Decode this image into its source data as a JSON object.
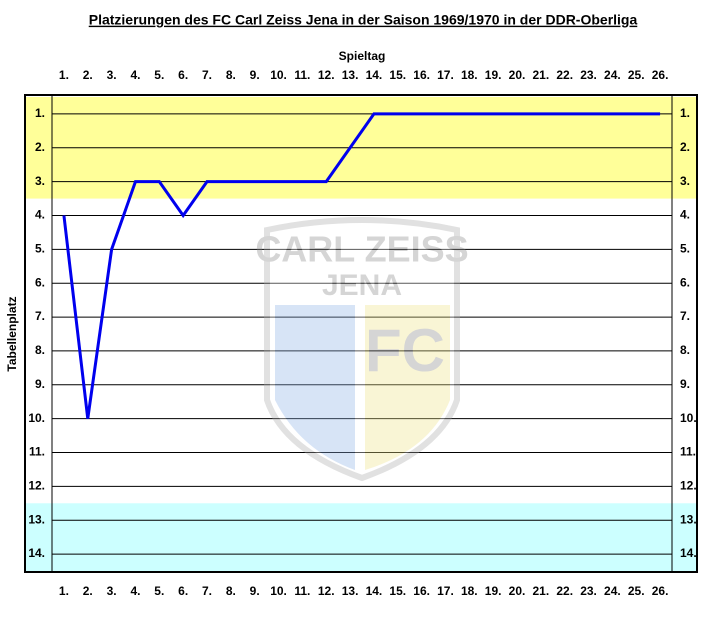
{
  "chart_data": {
    "type": "line",
    "title": "Platzierungen des FC Carl Zeiss Jena in der Saison 1969/1970 in der DDR-Oberliga",
    "x_label": "Spieltag",
    "y_label": "Tabellenplatz",
    "watermark": [
      "CARL ZEISS",
      "JENA",
      "FC"
    ],
    "categories": [
      "1.",
      "2.",
      "3.",
      "4.",
      "5.",
      "6.",
      "7.",
      "8.",
      "9.",
      "10.",
      "11.",
      "12.",
      "13.",
      "14.",
      "15.",
      "16.",
      "17.",
      "18.",
      "19.",
      "20.",
      "21.",
      "22.",
      "23.",
      "24.",
      "25.",
      "26."
    ],
    "series": [
      {
        "color": "#0000ee",
        "values": [
          4,
          10,
          5,
          3,
          3,
          4,
          3,
          3,
          3,
          3,
          3,
          3,
          2,
          1,
          1,
          1,
          1,
          1,
          1,
          1,
          1,
          1,
          1,
          1,
          1,
          1
        ]
      }
    ],
    "ylim": [
      0.5,
      14.5
    ],
    "y_inverted": true,
    "yticks": [
      {
        "value": 1,
        "label": "1."
      },
      {
        "value": 2,
        "label": "2."
      },
      {
        "value": 3,
        "label": "3."
      },
      {
        "value": 4,
        "label": "4."
      },
      {
        "value": 5,
        "label": "5."
      },
      {
        "value": 6,
        "label": "6."
      },
      {
        "value": 7,
        "label": "7."
      },
      {
        "value": 8,
        "label": "8."
      },
      {
        "value": 9,
        "label": "9."
      },
      {
        "value": 10,
        "label": "10."
      },
      {
        "value": 11,
        "label": "11."
      },
      {
        "value": 12,
        "label": "12."
      },
      {
        "value": 13,
        "label": "13."
      },
      {
        "value": 14,
        "label": "14."
      }
    ],
    "zones": [
      {
        "from": 0.5,
        "to": 3.5,
        "color": "#ffff99"
      },
      {
        "from": 12.5,
        "to": 14.5,
        "color": "#ccffff"
      }
    ],
    "grid": true
  }
}
